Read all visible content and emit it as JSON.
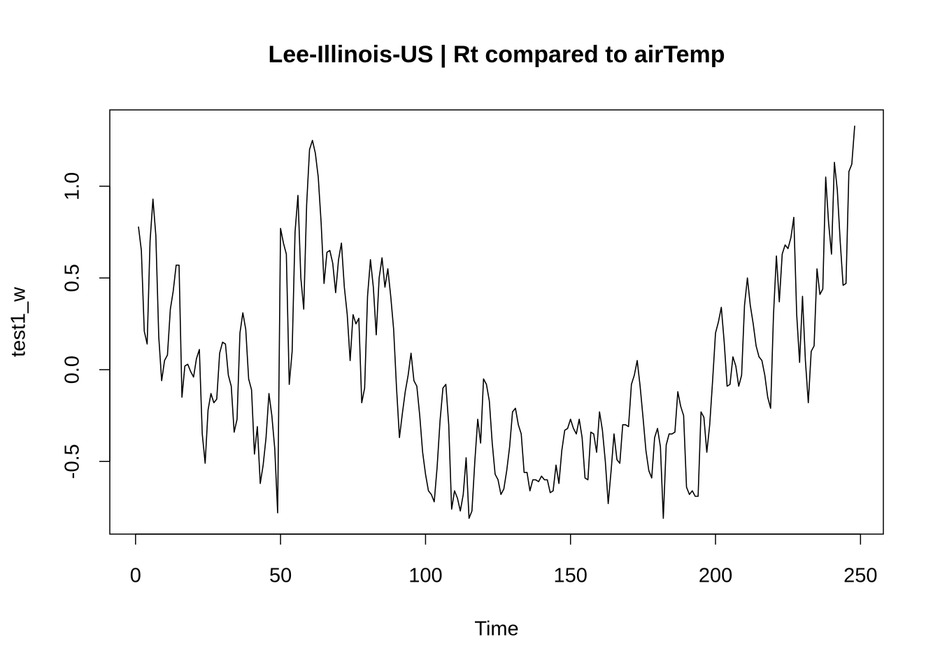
{
  "chart_data": {
    "type": "line",
    "title": "Lee-Illinois-US | Rt compared to airTemp",
    "x_label": "Time",
    "y_label": "test1_w",
    "color": "#000000",
    "xlim": [
      -8.88,
      257.88
    ],
    "ylim": [
      -0.896,
      1.416
    ],
    "xticks": [
      0,
      50,
      100,
      150,
      200,
      250
    ],
    "yticks": [
      -0.5,
      {
        "value": 0,
        "label": "0.0"
      },
      0.5,
      {
        "value": 1,
        "label": "1.0"
      }
    ],
    "x": [
      1,
      2,
      3,
      4,
      5,
      6,
      7,
      8,
      9,
      10,
      11,
      12,
      13,
      14,
      15,
      16,
      17,
      18,
      19,
      20,
      21,
      22,
      23,
      24,
      25,
      26,
      27,
      28,
      29,
      30,
      31,
      32,
      33,
      34,
      35,
      36,
      37,
      38,
      39,
      40,
      41,
      42,
      43,
      44,
      45,
      46,
      47,
      48,
      49,
      50,
      51,
      52,
      53,
      54,
      55,
      56,
      57,
      58,
      59,
      60,
      61,
      62,
      63,
      64,
      65,
      66,
      67,
      68,
      69,
      70,
      71,
      72,
      73,
      74,
      75,
      76,
      77,
      78,
      79,
      80,
      81,
      82,
      83,
      84,
      85,
      86,
      87,
      88,
      89,
      90,
      91,
      92,
      93,
      94,
      95,
      96,
      97,
      98,
      99,
      100,
      101,
      102,
      103,
      104,
      105,
      106,
      107,
      108,
      109,
      110,
      111,
      112,
      113,
      114,
      115,
      116,
      117,
      118,
      119,
      120,
      121,
      122,
      123,
      124,
      125,
      126,
      127,
      128,
      129,
      130,
      131,
      132,
      133,
      134,
      135,
      136,
      137,
      138,
      139,
      140,
      141,
      142,
      143,
      144,
      145,
      146,
      147,
      148,
      149,
      150,
      151,
      152,
      153,
      154,
      155,
      156,
      157,
      158,
      159,
      160,
      161,
      162,
      163,
      164,
      165,
      166,
      167,
      168,
      169,
      170,
      171,
      172,
      173,
      174,
      175,
      176,
      177,
      178,
      179,
      180,
      181,
      182,
      183,
      184,
      185,
      186,
      187,
      188,
      189,
      190,
      191,
      192,
      193,
      194,
      195,
      196,
      197,
      198,
      199,
      200,
      201,
      202,
      203,
      204,
      205,
      206,
      207,
      208,
      209,
      210,
      211,
      212,
      213,
      214,
      215,
      216,
      217,
      218,
      219,
      220,
      221,
      222,
      223,
      224,
      225,
      226,
      227,
      228,
      229,
      230,
      231,
      232,
      233,
      234,
      235,
      236,
      237,
      238,
      239,
      240,
      241,
      242,
      243,
      244,
      245,
      246,
      247,
      248
    ],
    "values": [
      0.78,
      0.65,
      0.21,
      0.14,
      0.7,
      0.93,
      0.73,
      0.18,
      -0.06,
      0.05,
      0.08,
      0.33,
      0.43,
      0.57,
      0.57,
      -0.15,
      0.02,
      0.03,
      -0.01,
      -0.04,
      0.06,
      0.11,
      -0.35,
      -0.51,
      -0.22,
      -0.13,
      -0.18,
      -0.16,
      0.09,
      0.15,
      0.14,
      -0.03,
      -0.09,
      -0.34,
      -0.27,
      0.2,
      0.31,
      0.22,
      -0.05,
      -0.11,
      -0.46,
      -0.31,
      -0.62,
      -0.52,
      -0.37,
      -0.13,
      -0.25,
      -0.43,
      -0.78,
      0.77,
      0.69,
      0.63,
      -0.08,
      0.1,
      0.75,
      0.95,
      0.5,
      0.33,
      0.9,
      1.2,
      1.25,
      1.18,
      1.05,
      0.8,
      0.47,
      0.64,
      0.65,
      0.58,
      0.42,
      0.6,
      0.69,
      0.45,
      0.3,
      0.05,
      0.3,
      0.25,
      0.28,
      -0.18,
      -0.1,
      0.4,
      0.6,
      0.45,
      0.19,
      0.5,
      0.61,
      0.45,
      0.55,
      0.4,
      0.22,
      -0.1,
      -0.37,
      -0.24,
      -0.12,
      -0.03,
      0.09,
      -0.06,
      -0.09,
      -0.25,
      -0.45,
      -0.57,
      -0.66,
      -0.68,
      -0.72,
      -0.53,
      -0.28,
      -0.1,
      -0.08,
      -0.3,
      -0.76,
      -0.66,
      -0.7,
      -0.77,
      -0.68,
      -0.48,
      -0.81,
      -0.77,
      -0.5,
      -0.27,
      -0.4,
      -0.05,
      -0.08,
      -0.17,
      -0.4,
      -0.57,
      -0.6,
      -0.68,
      -0.65,
      -0.55,
      -0.42,
      -0.23,
      -0.21,
      -0.3,
      -0.35,
      -0.56,
      -0.56,
      -0.66,
      -0.6,
      -0.6,
      -0.61,
      -0.58,
      -0.6,
      -0.6,
      -0.67,
      -0.66,
      -0.52,
      -0.62,
      -0.44,
      -0.33,
      -0.32,
      -0.27,
      -0.32,
      -0.35,
      -0.27,
      -0.37,
      -0.59,
      -0.6,
      -0.34,
      -0.35,
      -0.45,
      -0.23,
      -0.33,
      -0.5,
      -0.73,
      -0.55,
      -0.35,
      -0.49,
      -0.51,
      -0.3,
      -0.3,
      -0.31,
      -0.08,
      -0.03,
      0.05,
      -0.09,
      -0.26,
      -0.44,
      -0.55,
      -0.59,
      -0.37,
      -0.32,
      -0.42,
      -0.81,
      -0.41,
      -0.35,
      -0.35,
      -0.34,
      -0.12,
      -0.2,
      -0.25,
      -0.64,
      -0.68,
      -0.66,
      -0.69,
      -0.69,
      -0.23,
      -0.26,
      -0.45,
      -0.3,
      -0.06,
      0.2,
      0.26,
      0.34,
      0.15,
      -0.09,
      -0.08,
      0.07,
      0.02,
      -0.09,
      -0.03,
      0.35,
      0.5,
      0.35,
      0.25,
      0.13,
      0.07,
      0.05,
      -0.03,
      -0.15,
      -0.21,
      0.3,
      0.62,
      0.37,
      0.63,
      0.68,
      0.66,
      0.72,
      0.83,
      0.3,
      0.04,
      0.4,
      0.05,
      -0.18,
      0.1,
      0.13,
      0.55,
      0.41,
      0.44,
      1.05,
      0.8,
      0.63,
      1.13,
      0.98,
      0.7,
      0.46,
      0.47,
      1.08,
      1.12,
      1.33
    ]
  }
}
